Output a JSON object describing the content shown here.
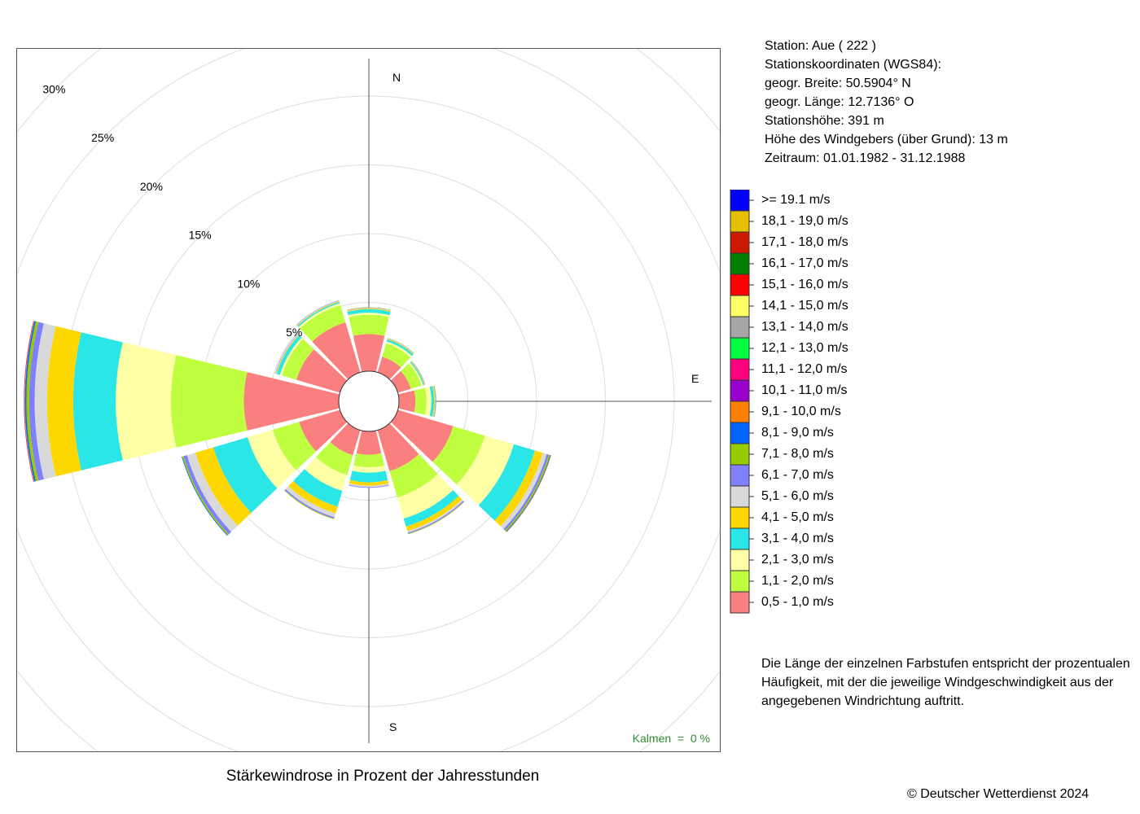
{
  "station": {
    "line1": "Station:  Aue  ( 222 )",
    "line2": "Stationskoordinaten (WGS84):",
    "line3": "geogr. Breite: 50.5904° N",
    "line4": "geogr. Länge: 12.7136° O",
    "line5": "Stationshöhe: 391 m",
    "line6": "Höhe des Windgebers (über Grund): 13 m",
    "line7": "Zeitraum: 01.01.1982 - 31.12.1988"
  },
  "description": "Die Länge der einzelnen Farbstufen entspricht der prozentualen Häufigkeit, mit der die jeweilige Windgeschwindigkeit aus der angegebenen Windrichtung auftritt.",
  "copyright": "© Deutscher Wetterdienst  2024",
  "chart_data": {
    "type": "windrose",
    "title": "Stärkewindrose in Prozent der Jahresstunden",
    "calm_label": "Kalmen  =  0 %",
    "compass_labels": [
      "N",
      "E",
      "S"
    ],
    "rings": [
      5,
      10,
      15,
      20,
      25,
      30
    ],
    "ring_labels": [
      "5%",
      "10%",
      "15%",
      "20%",
      "25%",
      "30%"
    ],
    "directions_deg": [
      0,
      30,
      60,
      90,
      120,
      150,
      180,
      210,
      240,
      270,
      300,
      330
    ],
    "speed_classes": [
      {
        "label": "0,5 - 1,0 m/s",
        "color": "#fa8080"
      },
      {
        "label": "1,1 - 2,0 m/s",
        "color": "#bfff3f"
      },
      {
        "label": "2,1 - 3,0 m/s",
        "color": "#ffffa6"
      },
      {
        "label": "3,1 - 4,0 m/s",
        "color": "#2ae6e6"
      },
      {
        "label": "4,1 - 5,0 m/s",
        "color": "#ffd700"
      },
      {
        "label": "5,1 - 6,0 m/s",
        "color": "#d9d9d9"
      },
      {
        "label": "6,1 - 7,0 m/s",
        "color": "#8080ff"
      },
      {
        "label": "7,1 - 8,0 m/s",
        "color": "#99cc00"
      },
      {
        "label": "8,1 - 9,0 m/s",
        "color": "#0066ff"
      },
      {
        "label": "9,1 - 10,0 m/s",
        "color": "#ff8000"
      },
      {
        "label": "10,1 - 11,0 m/s",
        "color": "#9900cc"
      },
      {
        "label": "11,1 - 12,0 m/s",
        "color": "#ff007f"
      },
      {
        "label": "12,1 - 13,0 m/s",
        "color": "#00ff3f"
      },
      {
        "label": "13,1 - 14,0 m/s",
        "color": "#a6a6a6"
      },
      {
        "label": "14,1 - 15,0 m/s",
        "color": "#ffff66"
      },
      {
        "label": "15,1 - 16,0 m/s",
        "color": "#ff0000"
      },
      {
        "label": "16,1 - 17,0 m/s",
        "color": "#007f00"
      },
      {
        "label": "17,1 - 18,0 m/s",
        "color": "#cc1a00"
      },
      {
        "label": "18,1 - 19,0 m/s",
        "color": "#e6bf00"
      },
      {
        "label": ">= 19.1 m/s",
        "color": "#0000ff"
      }
    ],
    "series": [
      {
        "direction": "N",
        "values": [
          2.7,
          1.4,
          0.15,
          0.25,
          0.05,
          0.05,
          0.02,
          0.02
        ]
      },
      {
        "direction": "030",
        "values": [
          1.2,
          1.0,
          0.15,
          0.15,
          0.05,
          0.02,
          0.02,
          0.02
        ]
      },
      {
        "direction": "060",
        "values": [
          1.0,
          0.8,
          0.12,
          0.08,
          0.03,
          0.02,
          0.02,
          0.02
        ]
      },
      {
        "direction": "E",
        "values": [
          1.2,
          0.8,
          0.35,
          0.2,
          0.06,
          0.04,
          0.03,
          0.03
        ]
      },
      {
        "direction": "120",
        "values": [
          4.2,
          2.4,
          2.2,
          1.6,
          0.6,
          0.3,
          0.15,
          0.1,
          0.05,
          0.03
        ]
      },
      {
        "direction": "150",
        "values": [
          3.1,
          2.0,
          1.6,
          0.6,
          0.35,
          0.12,
          0.08,
          0.04
        ]
      },
      {
        "direction": "S",
        "values": [
          1.7,
          0.9,
          0.4,
          0.7,
          0.25,
          0.1,
          0.05
        ]
      },
      {
        "direction": "210",
        "values": [
          1.9,
          1.5,
          1.2,
          1.2,
          0.5,
          0.3,
          0.1,
          0.05
        ]
      },
      {
        "direction": "240",
        "values": [
          3.1,
          2.0,
          1.9,
          2.6,
          1.35,
          0.65,
          0.25,
          0.1,
          0.05
        ]
      },
      {
        "direction": "W",
        "values": [
          6.9,
          5.3,
          4.0,
          3.1,
          1.9,
          0.9,
          0.4,
          0.2,
          0.1,
          0.05,
          0.03
        ]
      },
      {
        "direction": "300",
        "values": [
          3.3,
          1.1,
          0.15,
          0.25,
          0.05,
          0.05,
          0.03
        ]
      },
      {
        "direction": "330",
        "values": [
          3.8,
          1.3,
          0.15,
          0.1,
          0.05,
          0.04,
          0.03
        ]
      }
    ]
  }
}
